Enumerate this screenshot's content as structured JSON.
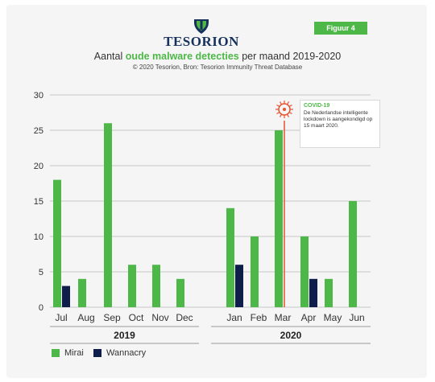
{
  "badge": "Figuur 4",
  "brand": "TESORION",
  "title_prefix": "Aantal ",
  "title_highlight": "oude malware detecties",
  "title_suffix": " per maand 2019-2020",
  "subtitle": "© 2020 Tesorion, Bron: Tesorion Immunity Threat Database",
  "annotation": {
    "heading": "COVID-19",
    "text": "De Nederlandse intelligente lockdown is aangekondigd op 15 maart 2020."
  },
  "colors": {
    "mirai": "#4db847",
    "wannacry": "#0f1d4a",
    "marker": "#e8532e",
    "grid": "#c8c8c8"
  },
  "chart_data": {
    "type": "bar",
    "categories": [
      "Jul",
      "Aug",
      "Sep",
      "Oct",
      "Nov",
      "Dec",
      "Jan",
      "Feb",
      "Mar",
      "Apr",
      "May",
      "Jun"
    ],
    "groups": [
      {
        "label": "2019",
        "categories": [
          "Jul",
          "Aug",
          "Sep",
          "Oct",
          "Nov",
          "Dec"
        ]
      },
      {
        "label": "2020",
        "categories": [
          "Jan",
          "Feb",
          "Mar",
          "Apr",
          "May",
          "Jun"
        ]
      }
    ],
    "series": [
      {
        "name": "Mirai",
        "values": [
          18,
          4,
          26,
          6,
          6,
          4,
          14,
          10,
          25,
          10,
          4,
          15
        ]
      },
      {
        "name": "Wannacry",
        "values": [
          3,
          0,
          0,
          0,
          0,
          0,
          6,
          0,
          0,
          4,
          0,
          0
        ]
      }
    ],
    "ylim": [
      0,
      30
    ],
    "yticks": [
      0,
      5,
      10,
      15,
      20,
      25,
      30
    ],
    "grid": true,
    "legend": "bottom-left",
    "event_marker": {
      "category": "Mar"
    }
  }
}
